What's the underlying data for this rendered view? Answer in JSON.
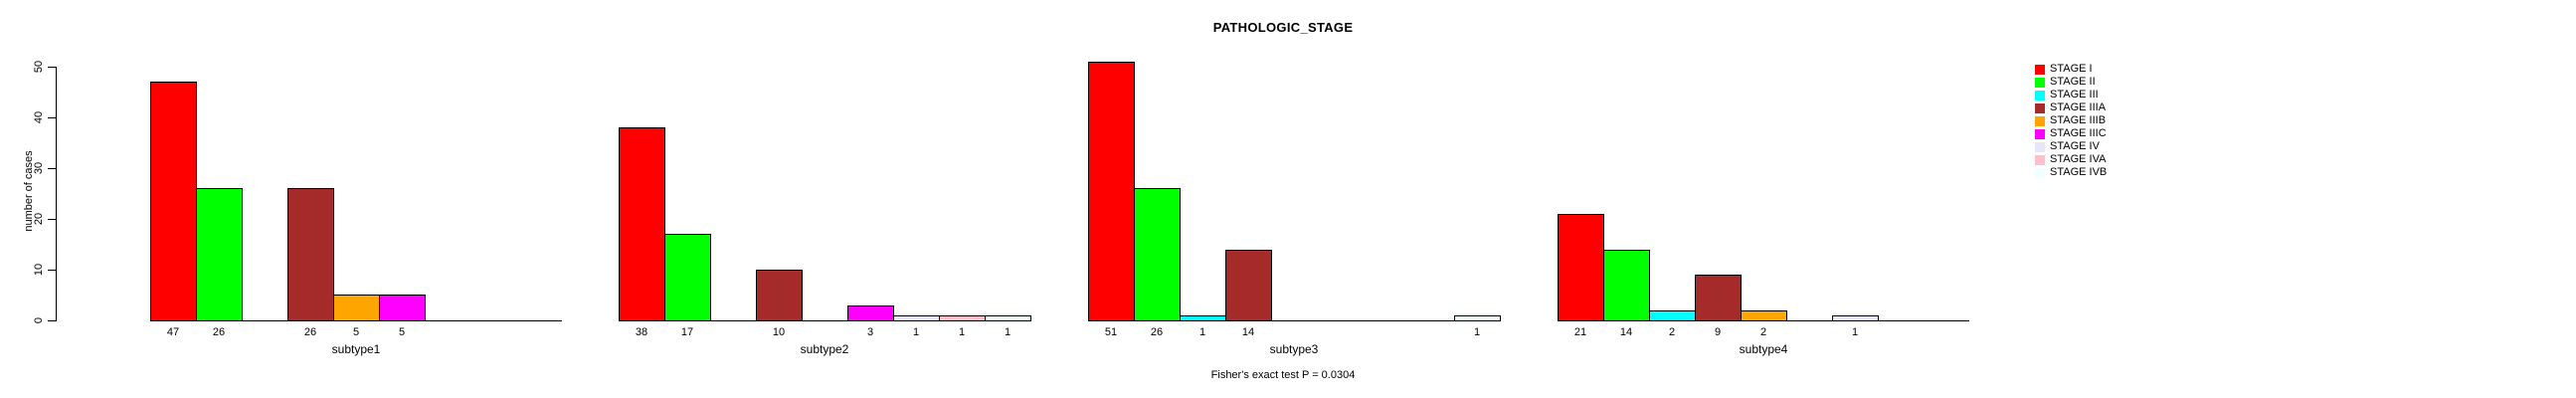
{
  "chart_data": {
    "type": "bar",
    "title": "PATHOLOGIC_STAGE",
    "ylabel": "number of cases",
    "xlabel": "",
    "yticks": [
      0,
      10,
      20,
      30,
      40,
      50
    ],
    "ylim": [
      0,
      50
    ],
    "grid": false,
    "legend_position": "right",
    "bar_value_labels_shown": "nonzero only",
    "categories": [
      "subtype1",
      "subtype2",
      "subtype3",
      "subtype4"
    ],
    "series": [
      {
        "name": "STAGE I",
        "color": "#FF0000",
        "values": [
          47,
          38,
          51,
          21
        ]
      },
      {
        "name": "STAGE II",
        "color": "#00FF00",
        "values": [
          26,
          17,
          26,
          14
        ]
      },
      {
        "name": "STAGE III",
        "color": "#00FFFF",
        "values": [
          0,
          0,
          1,
          2
        ]
      },
      {
        "name": "STAGE IIIA",
        "color": "#A52A2A",
        "values": [
          26,
          10,
          14,
          9
        ]
      },
      {
        "name": "STAGE IIIB",
        "color": "#FFA500",
        "values": [
          5,
          0,
          0,
          2
        ]
      },
      {
        "name": "STAGE IIIC",
        "color": "#FF00FF",
        "values": [
          5,
          3,
          0,
          0
        ]
      },
      {
        "name": "STAGE IV",
        "color": "#E6E6FA",
        "values": [
          0,
          1,
          0,
          1
        ]
      },
      {
        "name": "STAGE IVA",
        "color": "#FFC0CB",
        "values": [
          0,
          1,
          0,
          0
        ]
      },
      {
        "name": "STAGE IVB",
        "color": "#F0FFFF",
        "values": [
          0,
          1,
          1,
          0
        ]
      }
    ],
    "annotation": "Fisher's exact test P = 0.0304"
  }
}
